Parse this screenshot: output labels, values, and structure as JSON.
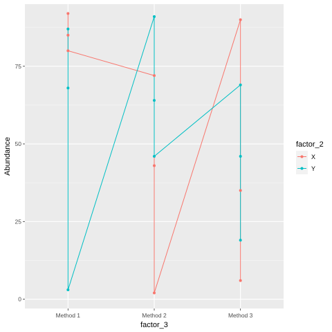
{
  "chart_data": {
    "type": "line",
    "xlabel": "factor_3",
    "ylabel": "Abundance",
    "categories": [
      "Method 1",
      "Method 2",
      "Method 3"
    ],
    "ylim": [
      -3,
      95
    ],
    "y_ticks": [
      0,
      25,
      50,
      75
    ],
    "y_tick_labels": [
      "0",
      "25",
      "50",
      "75"
    ],
    "grid": true,
    "legend": {
      "title": "factor_2",
      "position": "right"
    },
    "series": [
      {
        "name": "X",
        "color": "#F8766D",
        "points": [
          {
            "x": "Method 1",
            "y": 92
          },
          {
            "x": "Method 1",
            "y": 85
          },
          {
            "x": "Method 1",
            "y": 80
          },
          {
            "x": "Method 2",
            "y": 72
          },
          {
            "x": "Method 2",
            "y": 43
          },
          {
            "x": "Method 2",
            "y": 2
          },
          {
            "x": "Method 3",
            "y": 90
          },
          {
            "x": "Method 3",
            "y": 35
          },
          {
            "x": "Method 3",
            "y": 6
          }
        ]
      },
      {
        "name": "Y",
        "color": "#00BFC4",
        "points": [
          {
            "x": "Method 1",
            "y": 87
          },
          {
            "x": "Method 1",
            "y": 68
          },
          {
            "x": "Method 1",
            "y": 3
          },
          {
            "x": "Method 2",
            "y": 91
          },
          {
            "x": "Method 2",
            "y": 64
          },
          {
            "x": "Method 2",
            "y": 46
          },
          {
            "x": "Method 3",
            "y": 69
          },
          {
            "x": "Method 3",
            "y": 46
          },
          {
            "x": "Method 3",
            "y": 19
          }
        ]
      }
    ]
  }
}
